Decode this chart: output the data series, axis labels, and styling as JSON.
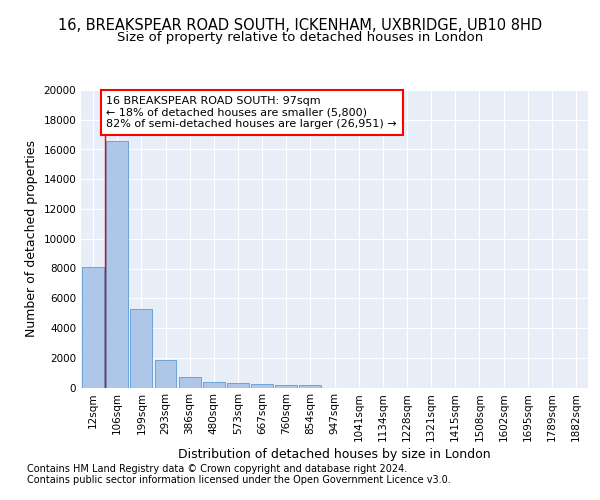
{
  "title_line1": "16, BREAKSPEAR ROAD SOUTH, ICKENHAM, UXBRIDGE, UB10 8HD",
  "title_line2": "Size of property relative to detached houses in London",
  "xlabel": "Distribution of detached houses by size in London",
  "ylabel": "Number of detached properties",
  "bar_color": "#aec6e8",
  "bar_edge_color": "#5b9bd5",
  "categories": [
    "12sqm",
    "106sqm",
    "199sqm",
    "293sqm",
    "386sqm",
    "480sqm",
    "573sqm",
    "667sqm",
    "760sqm",
    "854sqm",
    "947sqm",
    "1041sqm",
    "1134sqm",
    "1228sqm",
    "1321sqm",
    "1415sqm",
    "1508sqm",
    "1602sqm",
    "1695sqm",
    "1789sqm",
    "1882sqm"
  ],
  "values": [
    8100,
    16600,
    5300,
    1850,
    700,
    370,
    270,
    220,
    200,
    160,
    0,
    0,
    0,
    0,
    0,
    0,
    0,
    0,
    0,
    0,
    0
  ],
  "ylim": [
    0,
    20000
  ],
  "yticks": [
    0,
    2000,
    4000,
    6000,
    8000,
    10000,
    12000,
    14000,
    16000,
    18000,
    20000
  ],
  "annotation_text": "16 BREAKSPEAR ROAD SOUTH: 97sqm\n← 18% of detached houses are smaller (5,800)\n82% of semi-detached houses are larger (26,951) →",
  "annotation_box_color": "white",
  "annotation_box_edge": "red",
  "vline_color": "red",
  "background_color": "#e8eef8",
  "grid_color": "white",
  "footer_line1": "Contains HM Land Registry data © Crown copyright and database right 2024.",
  "footer_line2": "Contains public sector information licensed under the Open Government Licence v3.0.",
  "title_fontsize": 10.5,
  "subtitle_fontsize": 9.5,
  "axis_label_fontsize": 9,
  "tick_fontsize": 7.5,
  "annotation_fontsize": 8,
  "footer_fontsize": 7
}
